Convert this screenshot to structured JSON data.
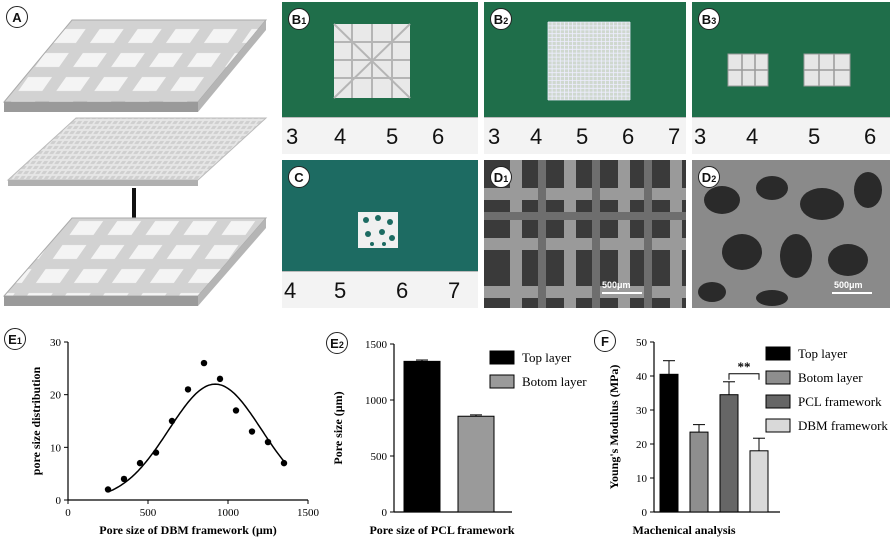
{
  "labels": {
    "A": "A",
    "B1": "B",
    "B2": "B",
    "B3": "B",
    "C": "C",
    "D1": "D",
    "D2": "D",
    "E1": "E",
    "E2": "E",
    "F": "F",
    "sub1": "1",
    "sub2": "2",
    "sub3": "3"
  },
  "rulers": {
    "b1": [
      "3",
      "4",
      "5",
      "6"
    ],
    "b2": [
      "3",
      "4",
      "5",
      "6",
      "7"
    ],
    "b3": [
      "3",
      "4",
      "5",
      "6"
    ],
    "c": [
      "4",
      "5",
      "6",
      "7"
    ]
  },
  "scalebars": {
    "d1": "500μm",
    "d2": "500μm"
  },
  "colors": {
    "green_cloth": "#1f6e4a",
    "teal_cloth": "#1d6b62",
    "sem_gray": "#7f7f7f"
  },
  "chart_data": [
    {
      "id": "E1",
      "type": "scatter",
      "xlabel": "Pore size  of DBM framework (μm)",
      "ylabel": "pore size distribution",
      "xlim": [
        0,
        1500
      ],
      "ylim": [
        0,
        30
      ],
      "xticks": [
        "0",
        "500",
        "1000",
        "1500"
      ],
      "yticks": [
        "0",
        "10",
        "20",
        "30"
      ],
      "points": [
        [
          250,
          2
        ],
        [
          350,
          4
        ],
        [
          450,
          7
        ],
        [
          550,
          9
        ],
        [
          650,
          15
        ],
        [
          750,
          21
        ],
        [
          850,
          26
        ],
        [
          950,
          23
        ],
        [
          1050,
          17
        ],
        [
          1150,
          13
        ],
        [
          1250,
          11
        ],
        [
          1350,
          7
        ]
      ],
      "fit_curve": "gaussian",
      "fit_params": {
        "amplitude": 22,
        "center": 920,
        "sigma": 290
      }
    },
    {
      "id": "E2",
      "type": "bar",
      "xlabel": "Pore size of PCL framework",
      "ylabel": "Pore size (μm)",
      "ylim": [
        0,
        1500
      ],
      "yticks": [
        "0",
        "500",
        "1000",
        "1500"
      ],
      "categories": [
        "Top layer",
        "Botom layer"
      ],
      "values": [
        1345,
        855
      ],
      "errors": [
        12,
        12
      ],
      "colors": [
        "#000000",
        "#9a9a9a"
      ]
    },
    {
      "id": "F",
      "type": "bar",
      "xlabel": "Machenical analysis",
      "ylabel": "Young's Modulus (MPa)",
      "ylim": [
        0,
        50
      ],
      "yticks": [
        "0",
        "10",
        "20",
        "30",
        "40",
        "50"
      ],
      "categories": [
        "Top layer",
        "Botom layer",
        "PCL framework",
        "DBM framework"
      ],
      "values": [
        40.5,
        23.5,
        34.5,
        18
      ],
      "errors": [
        4,
        2.2,
        3.8,
        3.7
      ],
      "colors": [
        "#000000",
        "#8e8e8e",
        "#666666",
        "#d9d9d9"
      ],
      "significance": {
        "between": [
          2,
          3
        ],
        "label": "**"
      }
    }
  ]
}
